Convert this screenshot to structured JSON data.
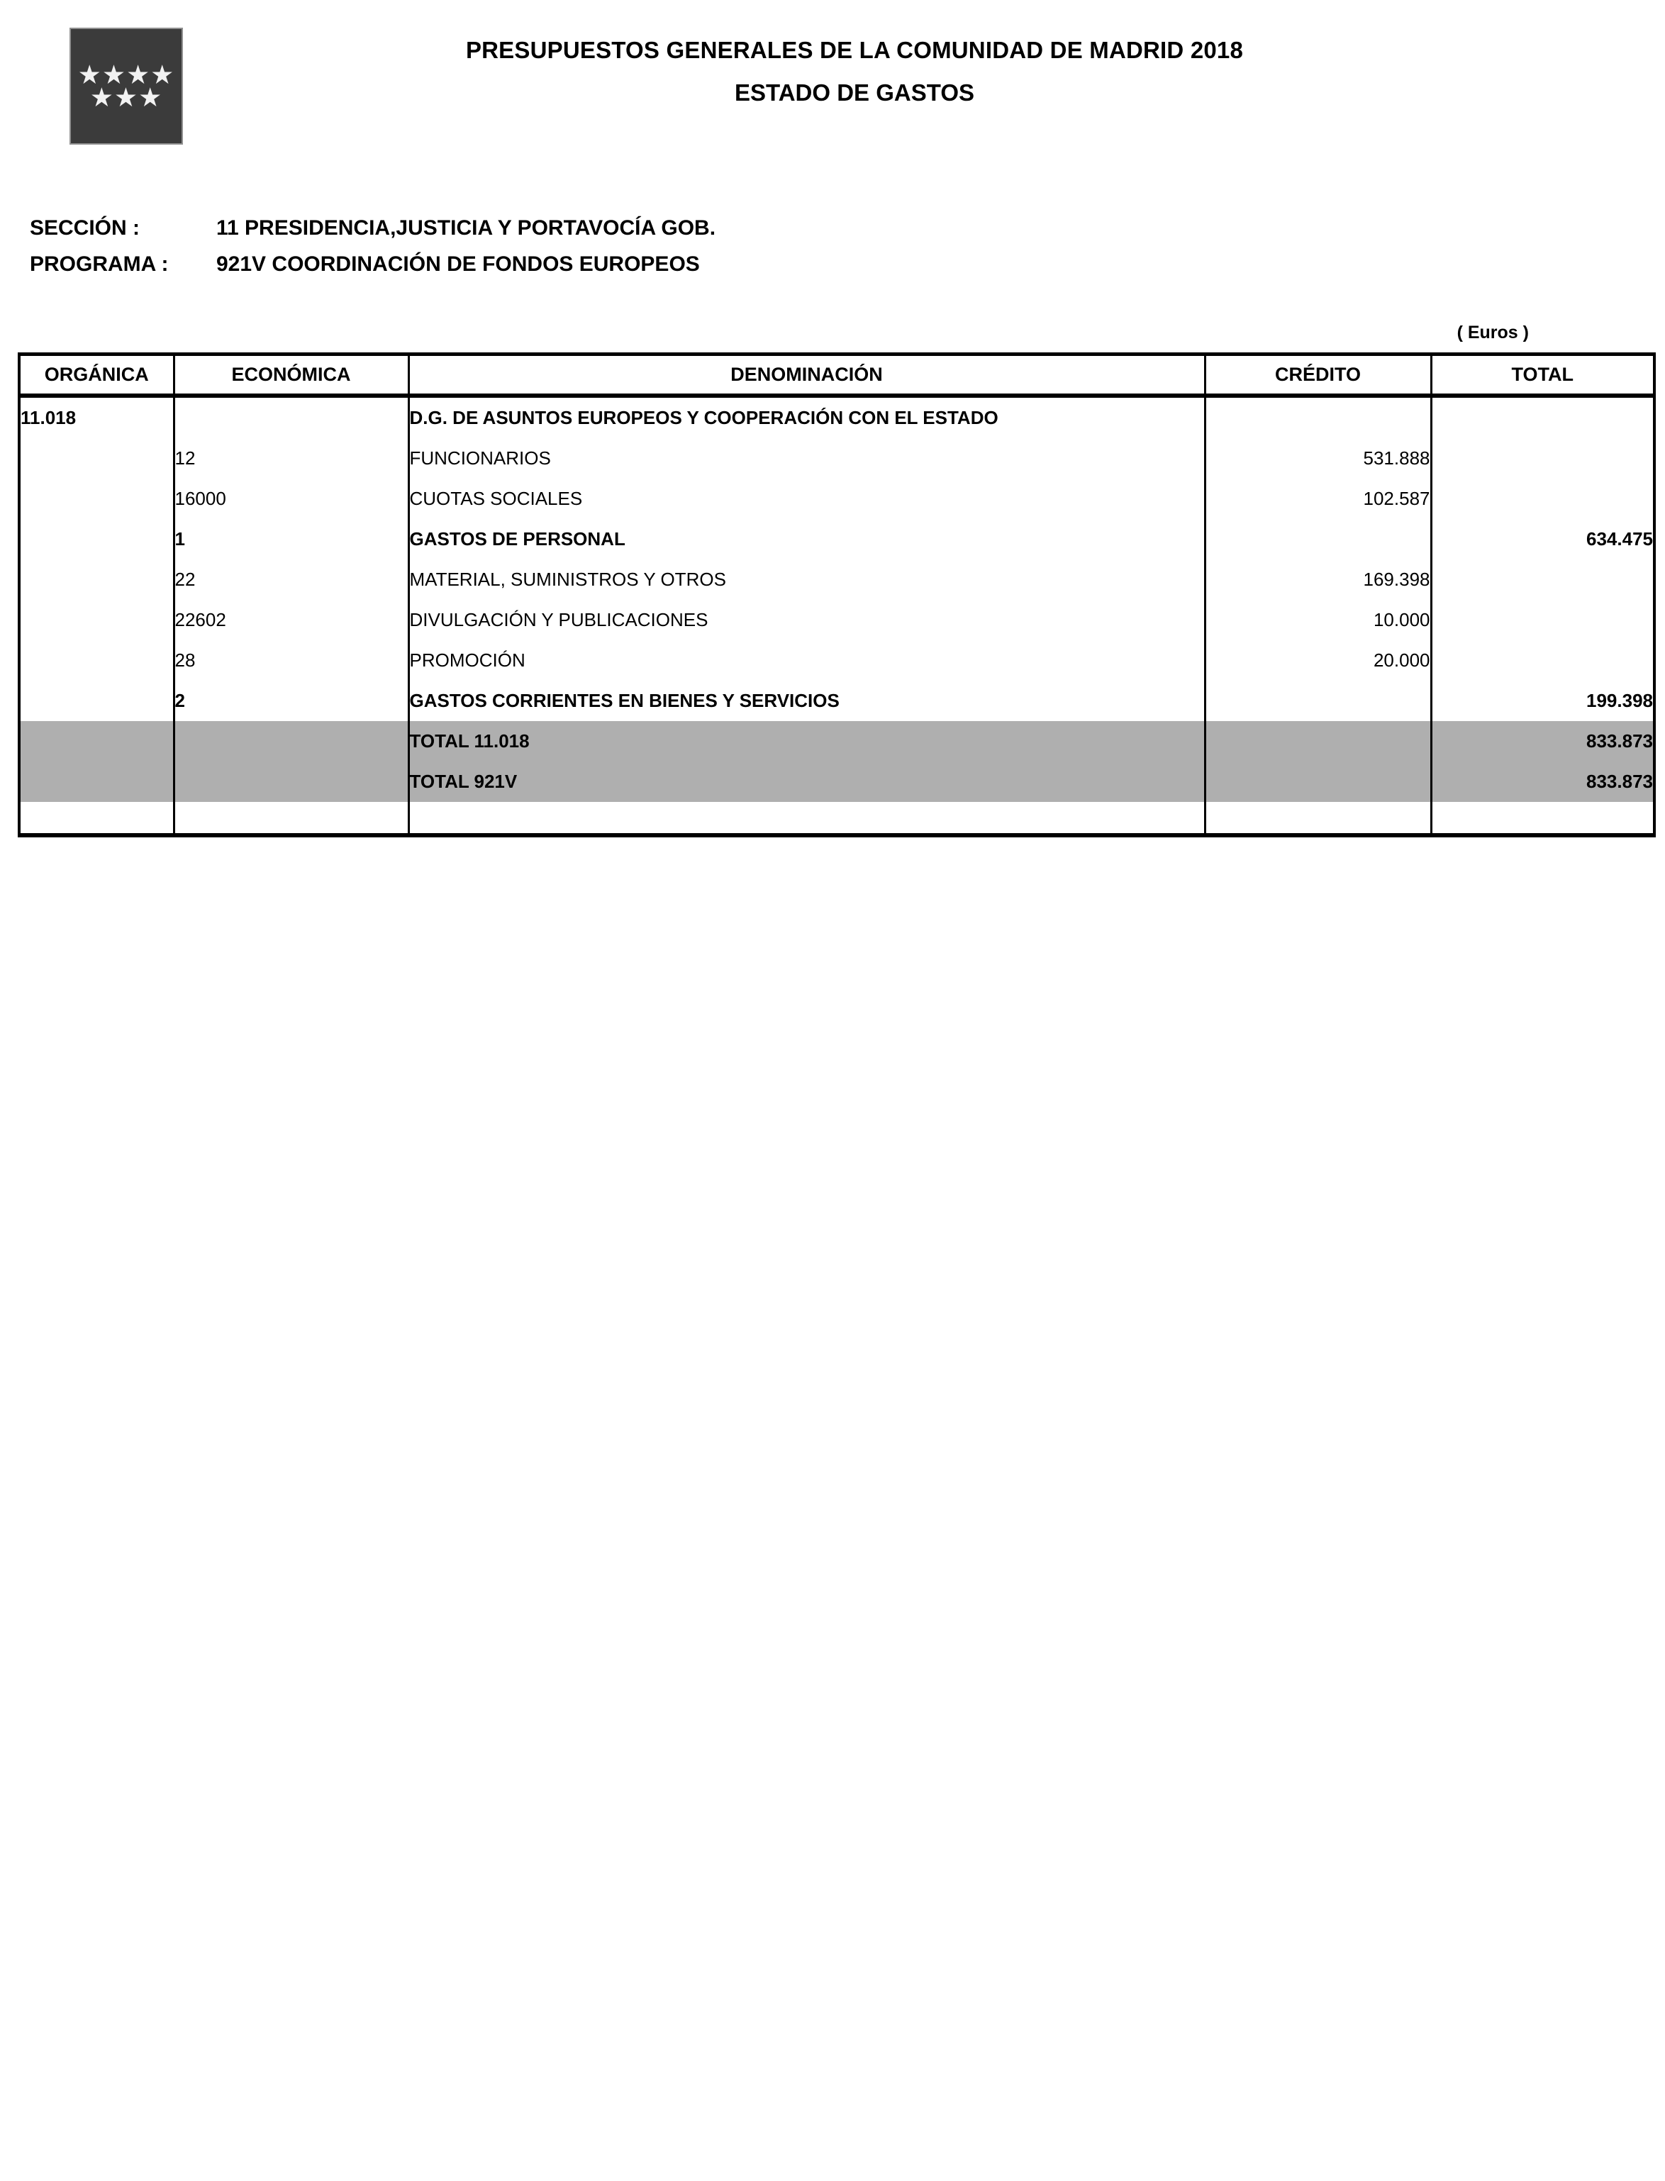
{
  "colors": {
    "highlight_gray": "#AFAFAF",
    "logo_bg": "#3B3B3B"
  },
  "logo": {
    "stars_top": "★★★★",
    "stars_bottom": "★★★"
  },
  "header": {
    "title": "PRESUPUESTOS GENERALES DE LA COMUNIDAD DE MADRID 2018",
    "subtitle": "ESTADO DE GASTOS"
  },
  "meta": {
    "seccion_label": "SECCIÓN :",
    "seccion_value": "11 PRESIDENCIA,JUSTICIA Y PORTAVOCÍA GOB.",
    "programa_label": "PROGRAMA :",
    "programa_value": "921V  COORDINACIÓN DE FONDOS EUROPEOS"
  },
  "table": {
    "currency_note": "( Euros )",
    "headers": [
      "ORGÁNICA",
      "ECONÓMICA",
      "DENOMINACIÓN",
      "CRÉDITO",
      "TOTAL"
    ],
    "rows": [
      {
        "organica": "11.018",
        "economica": "",
        "denominacion": "D.G. DE ASUNTOS EUROPEOS Y COOPERACIÓN CON EL ESTADO",
        "credito": "",
        "total": "",
        "bold": true,
        "gray": false,
        "empty": false
      },
      {
        "organica": "",
        "economica": "12",
        "denominacion": "FUNCIONARIOS",
        "credito": "531.888",
        "total": "",
        "bold": false,
        "gray": false,
        "empty": false
      },
      {
        "organica": "",
        "economica": "16000",
        "denominacion": "CUOTAS SOCIALES",
        "credito": "102.587",
        "total": "",
        "bold": false,
        "gray": false,
        "empty": false
      },
      {
        "organica": "",
        "economica": "1",
        "denominacion": "GASTOS DE PERSONAL",
        "credito": "",
        "total": "634.475",
        "bold": true,
        "gray": false,
        "empty": false
      },
      {
        "organica": "",
        "economica": "22",
        "denominacion": "MATERIAL, SUMINISTROS Y OTROS",
        "credito": "169.398",
        "total": "",
        "bold": false,
        "gray": false,
        "empty": false
      },
      {
        "organica": "",
        "economica": "22602",
        "denominacion": "DIVULGACIÓN Y PUBLICACIONES",
        "credito": "10.000",
        "total": "",
        "bold": false,
        "gray": false,
        "empty": false
      },
      {
        "organica": "",
        "economica": "28",
        "denominacion": "PROMOCIÓN",
        "credito": "20.000",
        "total": "",
        "bold": false,
        "gray": false,
        "empty": false
      },
      {
        "organica": "",
        "economica": "2",
        "denominacion": "GASTOS CORRIENTES EN BIENES Y SERVICIOS",
        "credito": "",
        "total": "199.398",
        "bold": true,
        "gray": false,
        "empty": false
      },
      {
        "organica": "",
        "economica": "",
        "denominacion": "TOTAL 11.018",
        "credito": "",
        "total": "833.873",
        "bold": true,
        "gray": true,
        "empty": false
      },
      {
        "organica": "",
        "economica": "",
        "denominacion": "TOTAL 921V",
        "credito": "",
        "total": "833.873",
        "bold": true,
        "gray": true,
        "empty": false
      },
      {
        "organica": "",
        "economica": "",
        "denominacion": "",
        "credito": "",
        "total": "",
        "bold": false,
        "gray": false,
        "empty": true
      }
    ]
  }
}
